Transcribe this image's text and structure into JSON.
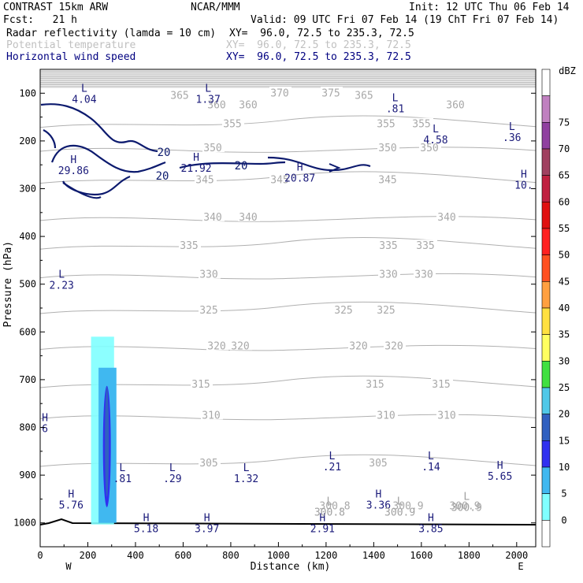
{
  "header": {
    "model": "CONTRAST 15km ARW",
    "center": "NCAR/MMM",
    "init": "Init: 12 UTC Thu 06 Feb 14",
    "fcst": "Fcst:   21 h",
    "valid": "Valid: 09 UTC Fri 07 Feb 14 (19 ChT Fri 07 Feb 14)",
    "fields": [
      {
        "name": "Radar reflectivity (lamda = 10 cm)",
        "xy": "XY=  96.0, 72.5 to 235.3, 72.5",
        "color": "#000000"
      },
      {
        "name": "Potential temperature",
        "xy": "XY=  96.0, 72.5 to 235.3, 72.5",
        "color": "#c0c0c0"
      },
      {
        "name": "Horizontal wind speed",
        "xy": "XY=  96.0, 72.5 to 235.3, 72.5",
        "color": "#000080"
      }
    ]
  },
  "chart_data": {
    "type": "cross-section",
    "xlabel": "Distance (km)",
    "ylabel": "Pressure (hPa)",
    "x_ticks": [
      0,
      200,
      400,
      600,
      800,
      1000,
      1200,
      1400,
      1600,
      1800,
      2000
    ],
    "y_ticks": [
      100,
      200,
      300,
      400,
      500,
      600,
      700,
      800,
      900,
      1000
    ],
    "xlim": [
      0,
      2080
    ],
    "ylim_top": 50,
    "ylim_bottom": 1050,
    "x_end_labels": {
      "left": "W",
      "right": "E"
    },
    "theta_isentropes": [
      {
        "label": "375",
        "pressure": 100
      },
      {
        "label": "370",
        "pressure": 100
      },
      {
        "label": "365",
        "pressure": 105
      },
      {
        "label": "360",
        "pressure": 125
      },
      {
        "label": "355",
        "pressure": 165
      },
      {
        "label": "350",
        "pressure": 215
      },
      {
        "label": "345",
        "pressure": 282
      },
      {
        "label": "340",
        "pressure": 360
      },
      {
        "label": "335",
        "pressure": 420
      },
      {
        "label": "330",
        "pressure": 480
      },
      {
        "label": "325",
        "pressure": 555
      },
      {
        "label": "320",
        "pressure": 630
      },
      {
        "label": "315",
        "pressure": 710
      },
      {
        "label": "310",
        "pressure": 775
      },
      {
        "label": "305",
        "pressure": 875
      },
      {
        "label": "300.8",
        "pressure": 965
      },
      {
        "label": "300.9",
        "pressure": 965
      }
    ],
    "wind_contours": [
      {
        "label": "20",
        "units": "m/s"
      }
    ],
    "wind_extrema": [
      {
        "type": "L",
        "value": "4.04",
        "x": 185,
        "p": 100
      },
      {
        "type": "L",
        "value": "1.37",
        "x": 705,
        "p": 100
      },
      {
        "type": "L",
        "value": ".81",
        "x": 1490,
        "p": 120
      },
      {
        "type": "L",
        "value": "4.58",
        "x": 1660,
        "p": 185
      },
      {
        "type": "L",
        "value": ".36",
        "x": 1980,
        "p": 180
      },
      {
        "type": "H",
        "value": "29.86",
        "x": 140,
        "p": 250
      },
      {
        "type": "H",
        "value": "21.92",
        "x": 655,
        "p": 245
      },
      {
        "type": "H",
        "value": "20.87",
        "x": 1090,
        "p": 265
      },
      {
        "type": "H",
        "value": "10.",
        "x": 2030,
        "p": 280
      },
      {
        "type": "L",
        "value": "2.23",
        "x": 90,
        "p": 490
      },
      {
        "type": "L",
        "value": ".81",
        "x": 345,
        "p": 895
      },
      {
        "type": "L",
        "value": ".29",
        "x": 555,
        "p": 895
      },
      {
        "type": "L",
        "value": "1.32",
        "x": 865,
        "p": 895
      },
      {
        "type": "L",
        "value": ".21",
        "x": 1225,
        "p": 870
      },
      {
        "type": "L",
        "value": ".14",
        "x": 1640,
        "p": 870
      },
      {
        "type": "H",
        "value": "5.65",
        "x": 1930,
        "p": 890
      },
      {
        "type": "H",
        "value": "5.76",
        "x": 130,
        "p": 950
      },
      {
        "type": "H",
        "value": "3.36",
        "x": 1420,
        "p": 950
      },
      {
        "type": "H",
        "value": "5.18",
        "x": 445,
        "p": 1000
      },
      {
        "type": "H",
        "value": "3.97",
        "x": 700,
        "p": 1000
      },
      {
        "type": "H",
        "value": "2.91",
        "x": 1185,
        "p": 1000
      },
      {
        "type": "H",
        "value": "3.85",
        "x": 1640,
        "p": 1000
      },
      {
        "type": "H",
        "value": "6",
        "x": 20,
        "p": 790
      }
    ],
    "theta_extrema": [
      {
        "type": "L",
        "value": "300.8",
        "x": 1215,
        "p": 965
      },
      {
        "type": "L",
        "value": "300.9",
        "x": 1510,
        "p": 965
      },
      {
        "type": "L",
        "value": "300.9",
        "x": 1790,
        "p": 955
      }
    ],
    "reflectivity_core": {
      "x_min": 230,
      "x_max": 330,
      "p_top": 610,
      "p_bottom": 1000,
      "max_dbz": 20
    },
    "colorbar": {
      "units": "dBZ",
      "levels": [
        "75",
        "70",
        "65",
        "60",
        "55",
        "50",
        "45",
        "40",
        "35",
        "30",
        "25",
        "20",
        "15",
        "10",
        "5",
        "0"
      ],
      "colors": [
        "#ffffff",
        "#c080c0",
        "#9040a0",
        "#a04060",
        "#c02040",
        "#e01010",
        "#ff2020",
        "#ff5020",
        "#ffa040",
        "#ffe040",
        "#ffff60",
        "#40e040",
        "#50c8e8",
        "#3060c0",
        "#3030f0",
        "#40b8f0",
        "#80ffff",
        "#ffffff"
      ]
    }
  }
}
